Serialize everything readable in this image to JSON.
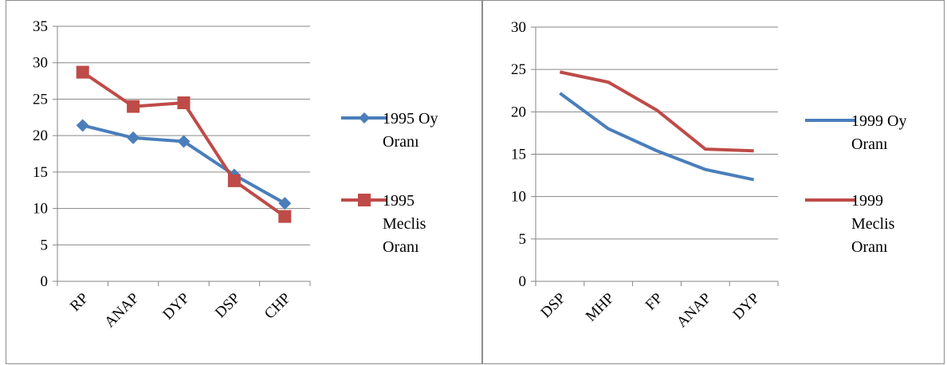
{
  "chart_data": [
    {
      "type": "line",
      "categories": [
        "RP",
        "ANAP",
        "DYP",
        "DSP",
        "CHP"
      ],
      "ylim": [
        0,
        35
      ],
      "ytick_step": 5,
      "grid": true,
      "legend_placement": "right",
      "series": [
        {
          "name": "1995 Oy Oranı",
          "legend_lines": [
            "1995 Oy",
            "Oranı"
          ],
          "values": [
            21.4,
            19.7,
            19.2,
            14.6,
            10.7
          ],
          "color": "#4a7ebb",
          "marker": "diamond"
        },
        {
          "name": "1995 Meclis Oranı",
          "legend_lines": [
            "1995",
            "Meclis",
            "Oranı"
          ],
          "values": [
            28.7,
            24.0,
            24.5,
            13.8,
            8.9
          ],
          "color": "#be4b48",
          "marker": "square"
        }
      ]
    },
    {
      "type": "line",
      "categories": [
        "DSP",
        "MHP",
        "FP",
        "ANAP",
        "DYP"
      ],
      "ylim": [
        0,
        30
      ],
      "ytick_step": 5,
      "grid": true,
      "legend_placement": "right",
      "series": [
        {
          "name": "1999 Oy Oranı",
          "legend_lines": [
            "1999 Oy",
            "Oranı"
          ],
          "values": [
            22.2,
            18.0,
            15.4,
            13.2,
            12.0
          ],
          "color": "#4a7ebb",
          "marker": "none"
        },
        {
          "name": "1999 Meclis Oranı",
          "legend_lines": [
            "1999",
            "Meclis",
            "Oranı"
          ],
          "values": [
            24.7,
            23.5,
            20.2,
            15.6,
            15.4
          ],
          "color": "#be4b48",
          "marker": "none"
        }
      ]
    }
  ]
}
